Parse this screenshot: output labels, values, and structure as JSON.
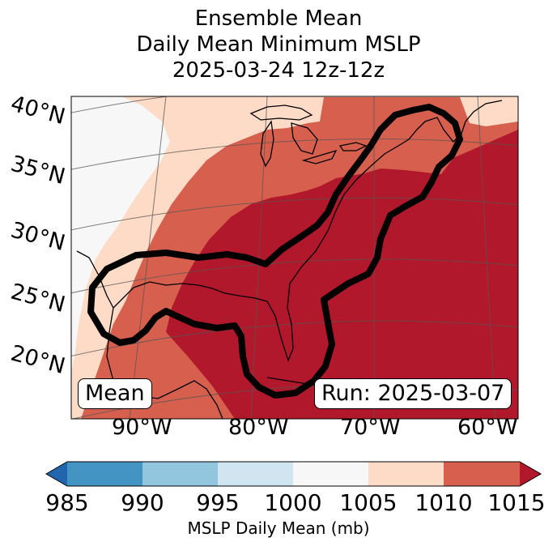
{
  "title": {
    "line1": "Ensemble Mean",
    "line2": "Daily Mean Minimum MSLP",
    "line3": "2025-03-24 12z-12z"
  },
  "map": {
    "lat_labels": [
      "40°N",
      "35°N",
      "30°N",
      "25°N",
      "20°N"
    ],
    "lon_labels": [
      "90°W",
      "80°W",
      "70°W",
      "60°W"
    ],
    "mean_badge": "Mean",
    "run_badge": "Run: 2025-03-07",
    "colors": {
      "c985": "#2166ac",
      "c990": "#4393c3",
      "c995": "#92c5de",
      "c1000": "#d1e5f0",
      "c1005": "#f7f7f7",
      "c1010": "#fddbc7",
      "c1015": "#d6604d",
      "cover": "#b2182b",
      "contour": "#000000"
    }
  },
  "colorbar": {
    "ticks": [
      "985",
      "990",
      "995",
      "1000",
      "1005",
      "1010",
      "1015"
    ],
    "label": "MSLP Daily Mean (mb)"
  }
}
